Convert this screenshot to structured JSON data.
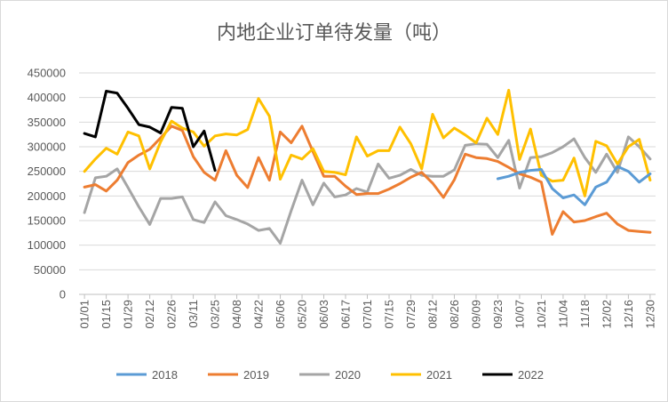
{
  "chart_data": {
    "type": "line",
    "title": "内地企业订单待发量（吨）",
    "xlabel": "",
    "ylabel": "",
    "ylim": [
      0,
      450000
    ],
    "yticks": [
      0,
      50000,
      100000,
      150000,
      200000,
      250000,
      300000,
      350000,
      400000,
      450000
    ],
    "ytick_labels": [
      "0",
      "50000",
      "100000",
      "150000",
      "200000",
      "250000",
      "300000",
      "350000",
      "400000",
      "450000"
    ],
    "x_tick_labels": [
      "01/01",
      "01/15",
      "01/29",
      "02/12",
      "02/26",
      "03/11",
      "03/25",
      "04/08",
      "04/22",
      "05/06",
      "05/20",
      "06/03",
      "06/17",
      "07/01",
      "07/15",
      "07/29",
      "08/12",
      "08/26",
      "09/09",
      "09/23",
      "10/07",
      "10/21",
      "11/04",
      "11/18",
      "12/02",
      "12/16",
      "12/30"
    ],
    "n_points": 53,
    "grid": true,
    "legend_position": "bottom",
    "series": [
      {
        "name": "2018",
        "color": "#5b9bd5",
        "start_index": 38,
        "values": [
          235000,
          240000,
          248000,
          252000,
          254000,
          215000,
          196000,
          202000,
          182000,
          218000,
          228000,
          260000,
          250000,
          228000,
          245000
        ]
      },
      {
        "name": "2019",
        "color": "#ed7d31",
        "start_index": 0,
        "values": [
          218000,
          223000,
          210000,
          232000,
          268000,
          283000,
          295000,
          318000,
          342000,
          333000,
          280000,
          248000,
          232000,
          292000,
          242000,
          217000,
          278000,
          232000,
          330000,
          308000,
          342000,
          290000,
          240000,
          240000,
          220000,
          203000,
          205000,
          205000,
          214000,
          225000,
          238000,
          248000,
          226000,
          197000,
          233000,
          285000,
          278000,
          276000,
          270000,
          258000,
          245000,
          238000,
          228000,
          122000,
          168000,
          147000,
          150000,
          158000,
          165000,
          143000,
          130000,
          128000,
          126000
        ]
      },
      {
        "name": "2020",
        "color": "#a5a5a5",
        "start_index": 0,
        "values": [
          166000,
          237000,
          240000,
          255000,
          217000,
          178000,
          142000,
          195000,
          195000,
          198000,
          152000,
          146000,
          188000,
          160000,
          152000,
          143000,
          130000,
          134000,
          104000,
          170000,
          232000,
          182000,
          226000,
          198000,
          202000,
          215000,
          208000,
          265000,
          236000,
          242000,
          254000,
          242000,
          240000,
          240000,
          253000,
          303000,
          306000,
          305000,
          278000,
          313000,
          216000,
          278000,
          280000,
          288000,
          300000,
          316000,
          278000,
          248000,
          285000,
          248000,
          320000,
          300000,
          275000
        ]
      },
      {
        "name": "2021",
        "color": "#ffc000",
        "start_index": 0,
        "values": [
          250000,
          275000,
          297000,
          285000,
          330000,
          322000,
          255000,
          310000,
          352000,
          338000,
          330000,
          301000,
          322000,
          326000,
          324000,
          335000,
          398000,
          362000,
          234000,
          283000,
          275000,
          296000,
          250000,
          248000,
          243000,
          320000,
          281000,
          292000,
          292000,
          340000,
          306000,
          255000,
          366000,
          318000,
          338000,
          324000,
          308000,
          358000,
          325000,
          415000,
          274000,
          336000,
          242000,
          230000,
          232000,
          277000,
          200000,
          311000,
          302000,
          265000,
          300000,
          315000,
          232000
        ]
      },
      {
        "name": "2022",
        "color": "#000000",
        "start_index": 0,
        "values": [
          327000,
          320000,
          413000,
          409000,
          378000,
          345000,
          340000,
          328000,
          380000,
          378000,
          300000,
          332000,
          252000
        ]
      }
    ]
  }
}
